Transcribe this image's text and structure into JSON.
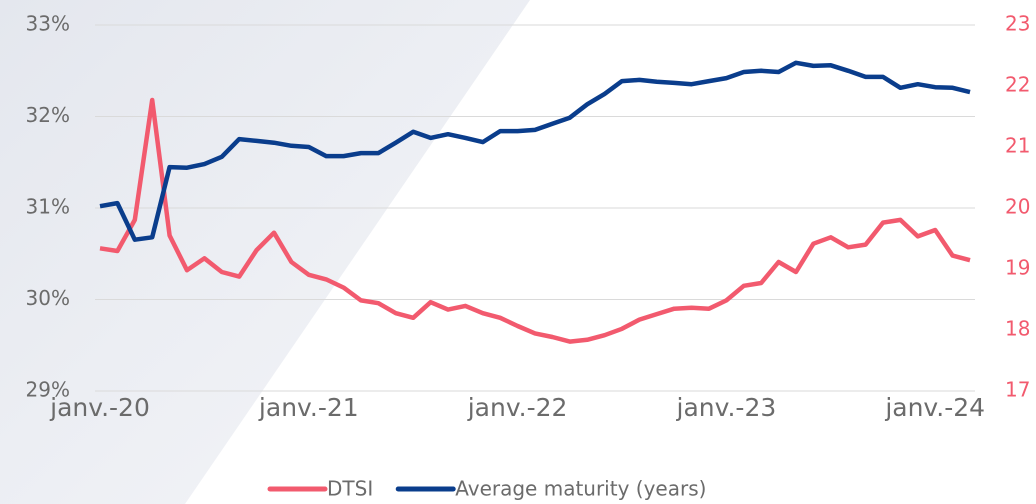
{
  "chart_data": {
    "type": "line",
    "categories": [
      "janv.-20",
      null,
      null,
      null,
      null,
      null,
      null,
      null,
      null,
      null,
      null,
      null,
      "janv.-21",
      null,
      null,
      null,
      null,
      null,
      null,
      null,
      null,
      null,
      null,
      null,
      "janv.-22",
      null,
      null,
      null,
      null,
      null,
      null,
      null,
      null,
      null,
      null,
      null,
      "janv.-23",
      null,
      null,
      null,
      null,
      null,
      null,
      null,
      null,
      null,
      null,
      null,
      "janv.-24",
      null,
      null
    ],
    "series": [
      {
        "name": "DTSI",
        "color": "#f25a6e",
        "axis": "y",
        "values": [
          30.56,
          30.53,
          30.87,
          32.18,
          30.7,
          30.32,
          30.45,
          30.3,
          30.25,
          30.54,
          30.73,
          30.41,
          30.27,
          30.22,
          30.13,
          29.99,
          29.96,
          29.85,
          29.8,
          29.97,
          29.89,
          29.93,
          29.85,
          29.8,
          29.71,
          29.63,
          29.59,
          29.54,
          29.56,
          29.61,
          29.68,
          29.78,
          29.84,
          29.9,
          29.91,
          29.9,
          29.99,
          30.15,
          30.18,
          30.41,
          30.3,
          30.61,
          30.68,
          30.57,
          30.6,
          30.84,
          30.87,
          30.69,
          30.76,
          30.48,
          30.43
        ]
      },
      {
        "name": "Average maturity (years)",
        "color": "#0a3d8c",
        "axis": "y2",
        "values": [
          20.03,
          20.08,
          19.48,
          19.52,
          20.67,
          20.66,
          20.72,
          20.84,
          21.13,
          21.1,
          21.07,
          21.02,
          21.0,
          20.85,
          20.85,
          20.9,
          20.9,
          21.07,
          21.25,
          21.15,
          21.21,
          21.15,
          21.08,
          21.26,
          21.26,
          21.28,
          21.38,
          21.48,
          21.7,
          21.87,
          22.08,
          22.1,
          22.07,
          22.05,
          22.03,
          22.08,
          22.13,
          22.23,
          22.25,
          22.23,
          22.38,
          22.33,
          22.34,
          22.25,
          22.15,
          22.15,
          21.97,
          22.03,
          21.98,
          21.97,
          21.9
        ]
      }
    ],
    "ylim": [
      29,
      33
    ],
    "yticks": [
      {
        "value": 29,
        "label": "29%"
      },
      {
        "value": 30,
        "label": "30%"
      },
      {
        "value": 31,
        "label": "31%"
      },
      {
        "value": 32,
        "label": "32%"
      },
      {
        "value": 33,
        "label": "33%"
      }
    ],
    "y2lim": [
      17,
      23
    ],
    "y2ticks": [
      17,
      18,
      19,
      20,
      21,
      22,
      23
    ],
    "grid": true,
    "legend": "bottom"
  }
}
